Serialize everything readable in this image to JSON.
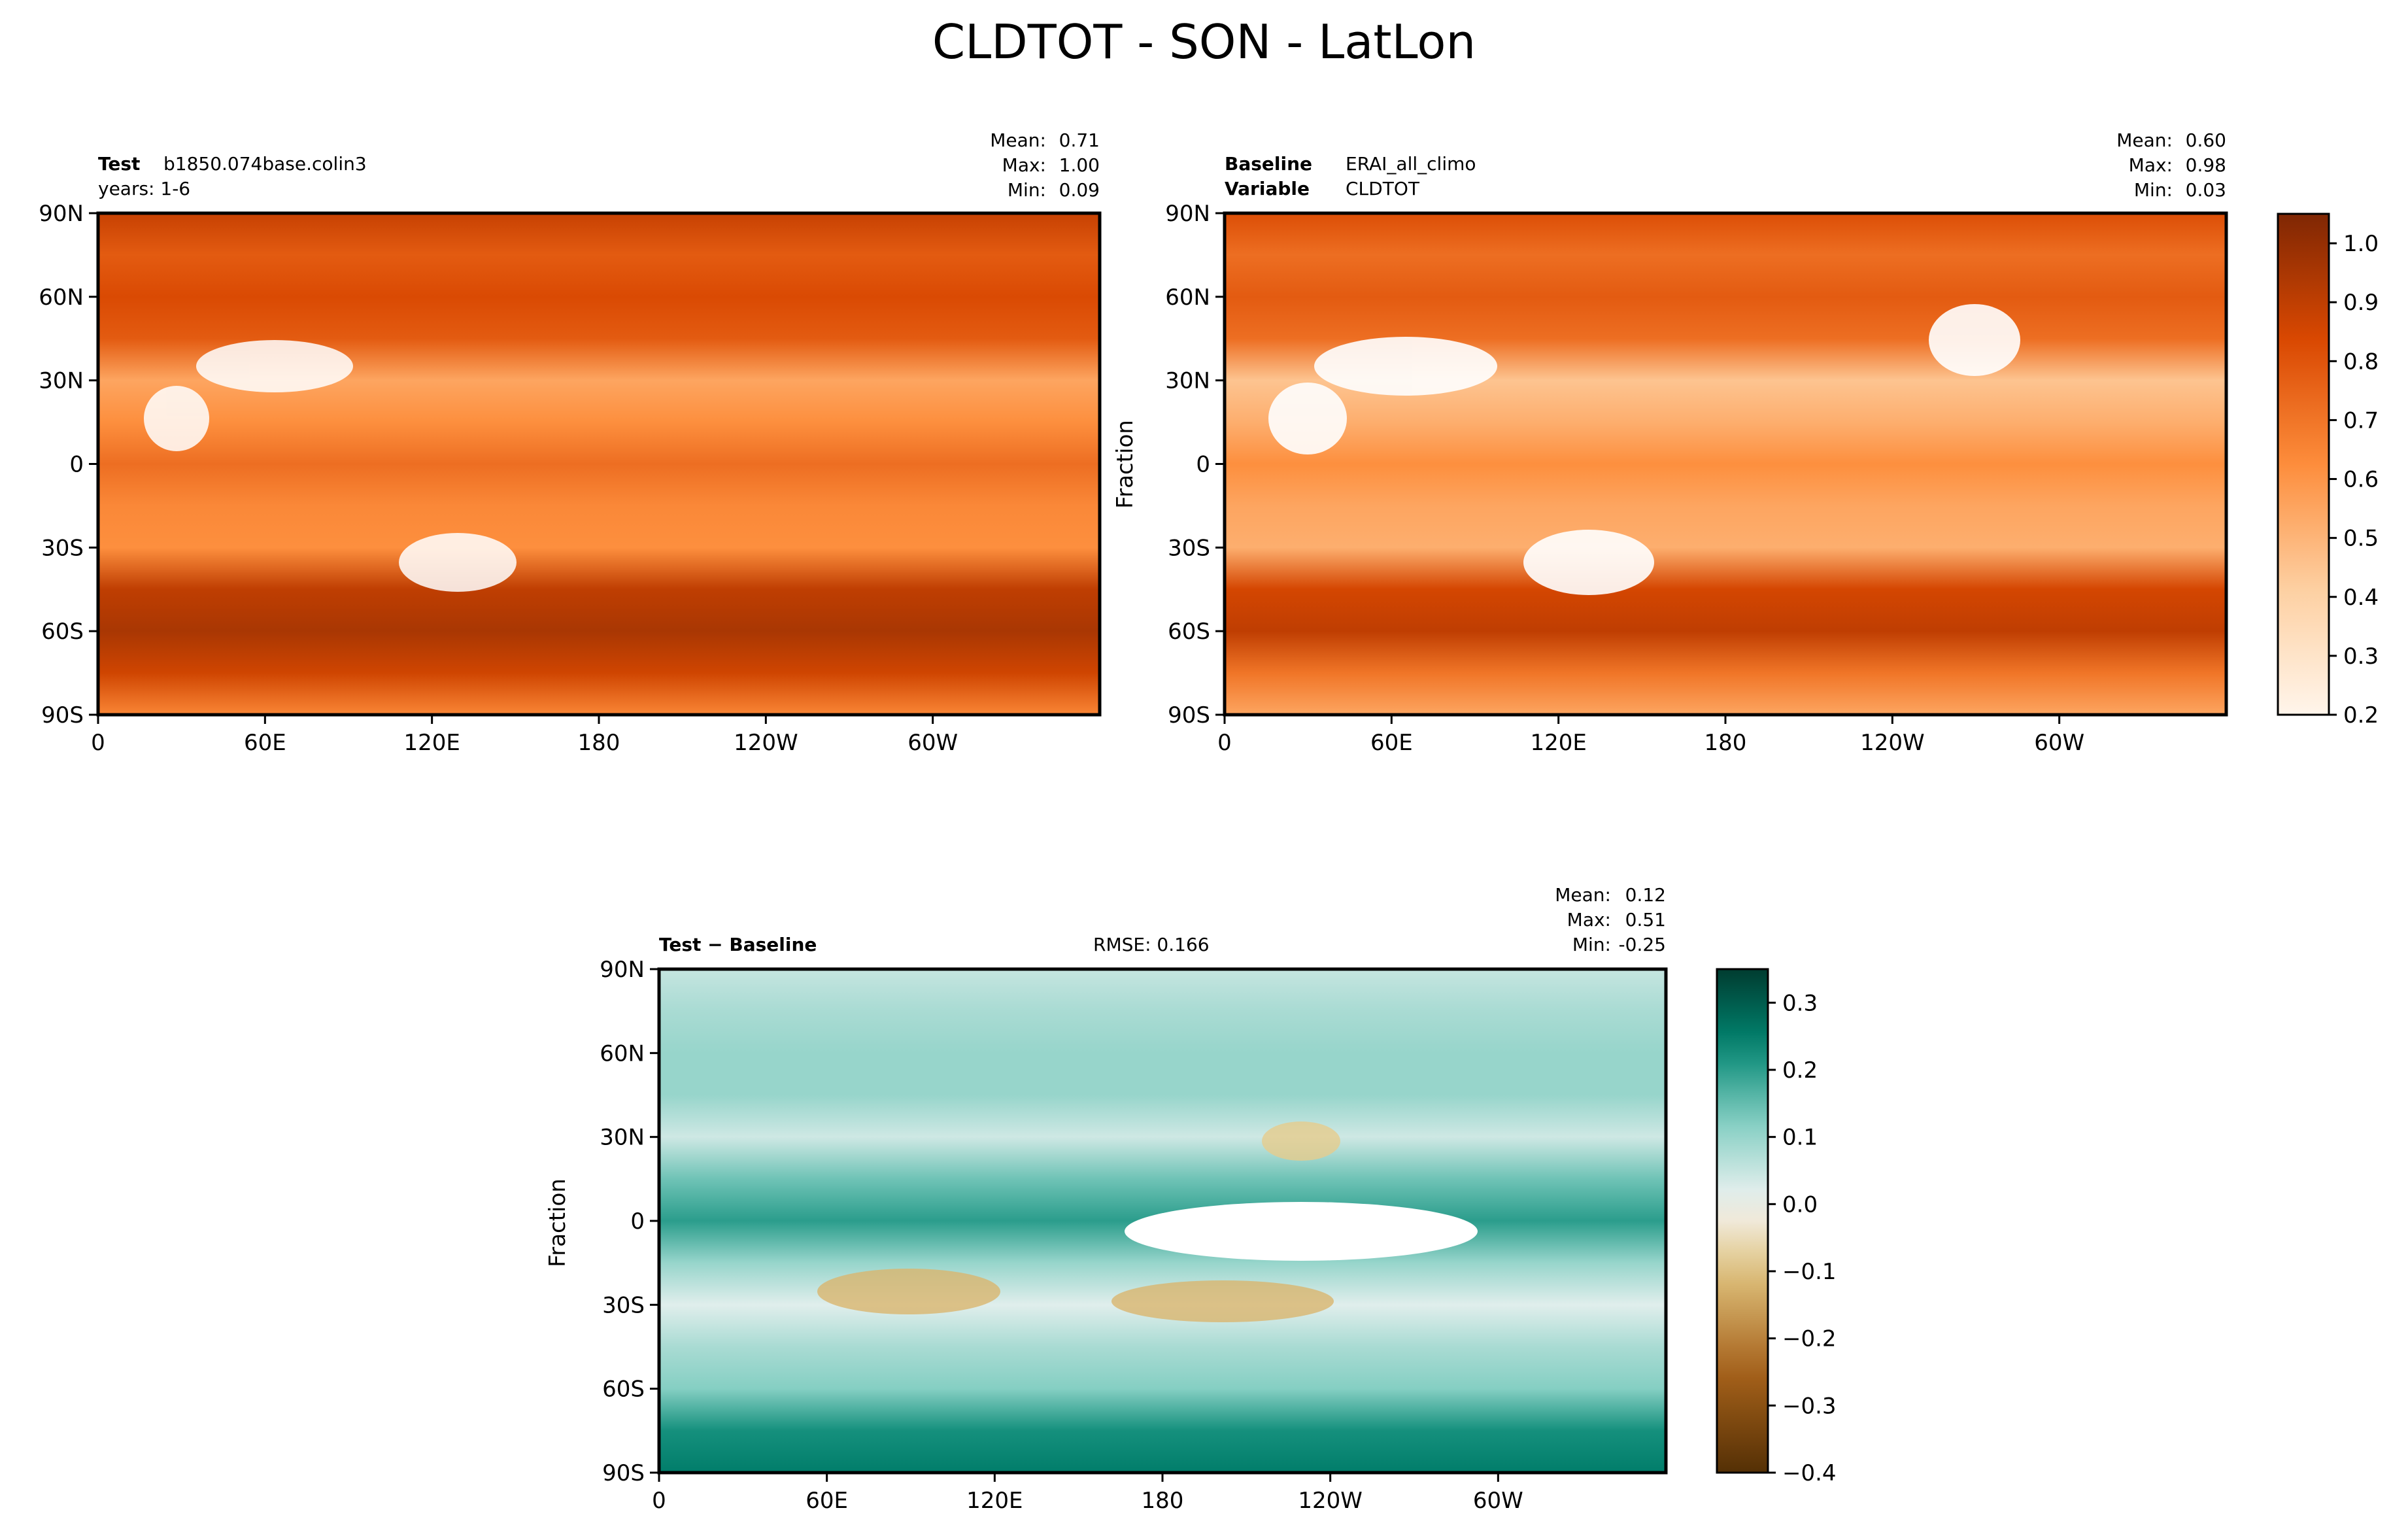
{
  "figure": {
    "title": "CLDTOT - SON - LatLon"
  },
  "chart_data": [
    {
      "type": "heatmap",
      "panel": "test",
      "title_left_bold": "Test",
      "title_left_value": "b1850.074base.colin3",
      "title_left_line2": "years: 1-6",
      "stats": {
        "mean": "0.71",
        "max": "1.00",
        "min": "0.09"
      },
      "stats_labels": {
        "mean": "Mean:",
        "max": "Max:",
        "min": "Min:"
      },
      "ylabel": "",
      "xticks": [
        "0",
        "60E",
        "120E",
        "180",
        "120W",
        "60W"
      ],
      "yticks": [
        "90N",
        "60N",
        "30N",
        "0",
        "30S",
        "60S",
        "90S"
      ],
      "colormap": "oranges",
      "zonal_profile": {
        "lat": [
          -90,
          -75,
          -60,
          -45,
          -30,
          -15,
          0,
          15,
          30,
          45,
          60,
          75,
          90
        ],
        "value": [
          0.65,
          0.86,
          0.95,
          0.9,
          0.62,
          0.64,
          0.72,
          0.62,
          0.55,
          0.78,
          0.83,
          0.78,
          0.88
        ]
      }
    },
    {
      "type": "heatmap",
      "panel": "baseline",
      "title_left_bold": "Baseline",
      "title_left_value": "ERAI_all_climo",
      "title_left_bold2": "Variable",
      "title_left_value2": "CLDTOT",
      "stats": {
        "mean": "0.60",
        "max": "0.98",
        "min": "0.03"
      },
      "stats_labels": {
        "mean": "Mean:",
        "max": "Max:",
        "min": "Min:"
      },
      "ylabel": "Fraction",
      "xticks": [
        "0",
        "60E",
        "120E",
        "180",
        "120W",
        "60W"
      ],
      "yticks": [
        "90N",
        "60N",
        "30N",
        "0",
        "30S",
        "60S",
        "90S"
      ],
      "colormap": "oranges",
      "colorbar": {
        "ticks": [
          "1.0",
          "0.9",
          "0.8",
          "0.7",
          "0.6",
          "0.5",
          "0.4",
          "0.3",
          "0.2"
        ],
        "range": [
          0.2,
          1.05
        ]
      },
      "zonal_profile": {
        "lat": [
          -90,
          -75,
          -60,
          -45,
          -30,
          -15,
          0,
          15,
          30,
          45,
          60,
          75,
          90
        ],
        "value": [
          0.55,
          0.7,
          0.9,
          0.85,
          0.52,
          0.55,
          0.62,
          0.52,
          0.45,
          0.72,
          0.78,
          0.72,
          0.82
        ]
      }
    },
    {
      "type": "heatmap",
      "panel": "difference",
      "title_left_bold": "Test − Baseline",
      "rmse": "RMSE: 0.166",
      "stats": {
        "mean": "0.12",
        "max": "0.51",
        "min": "-0.25"
      },
      "stats_labels": {
        "mean": "Mean:",
        "max": "Max:",
        "min": "Min:"
      },
      "ylabel": "Fraction",
      "xticks": [
        "0",
        "60E",
        "120E",
        "180",
        "120W",
        "60W"
      ],
      "yticks": [
        "90N",
        "60N",
        "30N",
        "0",
        "30S",
        "60S",
        "90S"
      ],
      "colormap": "brown-blue-green",
      "colorbar": {
        "ticks": [
          "0.3",
          "0.2",
          "0.1",
          "0.0",
          "−0.1",
          "−0.2",
          "−0.3",
          "−0.4"
        ],
        "range": [
          -0.4,
          0.35
        ]
      },
      "zonal_profile": {
        "lat": [
          -90,
          -75,
          -60,
          -45,
          -30,
          -15,
          0,
          15,
          30,
          45,
          60,
          75,
          90
        ],
        "value": [
          0.25,
          0.22,
          0.12,
          0.08,
          0.02,
          0.1,
          0.2,
          0.14,
          0.04,
          0.1,
          0.1,
          0.08,
          0.05
        ]
      }
    }
  ]
}
